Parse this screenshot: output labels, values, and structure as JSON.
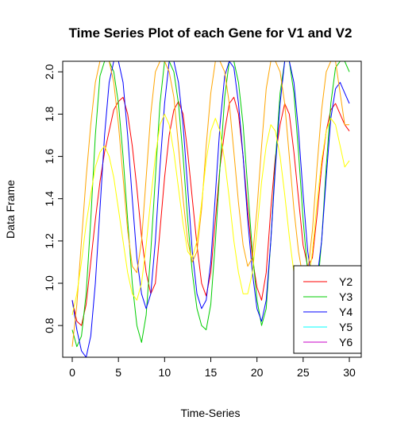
{
  "chart_data": {
    "type": "line",
    "title": "Time Series Plot of each Gene for V1 and V2",
    "xlabel": "Time-Series",
    "ylabel": "Data Frame",
    "xlim": [
      0,
      30
    ],
    "ylim": [
      0.65,
      2.05
    ],
    "x_ticks": [
      0,
      5,
      10,
      15,
      20,
      25,
      30
    ],
    "x_tick_labels": [
      "0",
      "5",
      "10",
      "15",
      "20",
      "25",
      "30"
    ],
    "y_ticks": [
      0.8,
      1.0,
      1.2,
      1.4,
      1.6,
      1.8,
      2.0
    ],
    "y_tick_labels": [
      "0.8",
      "1.0",
      "1.2",
      "1.4",
      "1.6",
      "1.8",
      "2.0"
    ],
    "grid": false,
    "legend_position": "bottom-right",
    "series": [
      {
        "name": "Y2",
        "color": "#FF0000",
        "x": [
          0,
          0.5,
          1,
          1.5,
          2,
          2.5,
          3,
          3.5,
          4,
          4.5,
          5,
          5.5,
          6,
          6.5,
          7,
          7.5,
          8,
          8.5,
          9,
          9.5,
          10,
          10.5,
          11,
          11.5,
          12,
          12.5,
          13,
          13.5,
          14,
          14.5,
          15,
          15.5,
          16,
          16.5,
          17,
          17.5,
          18,
          18.5,
          19,
          19.5,
          20,
          20.5,
          21,
          21.5,
          22,
          22.5,
          23,
          23.5,
          24,
          24.5,
          25,
          25.5,
          26,
          26.5,
          27,
          27.5,
          28,
          28.5,
          29,
          29.5,
          30
        ],
        "values": [
          0.92,
          0.82,
          0.8,
          0.9,
          1.1,
          1.3,
          1.48,
          1.62,
          1.72,
          1.82,
          1.86,
          1.88,
          1.8,
          1.65,
          1.45,
          1.22,
          1.05,
          0.95,
          1.0,
          1.25,
          1.5,
          1.7,
          1.82,
          1.86,
          1.8,
          1.62,
          1.4,
          1.18,
          1.0,
          0.94,
          1.05,
          1.3,
          1.55,
          1.72,
          1.85,
          1.88,
          1.8,
          1.6,
          1.35,
          1.12,
          0.98,
          0.92,
          1.05,
          1.35,
          1.6,
          1.75,
          1.85,
          1.8,
          1.62,
          1.4,
          1.18,
          1.08,
          1.12,
          1.32,
          1.55,
          1.72,
          1.82,
          1.85,
          1.8,
          1.75,
          1.72
        ]
      },
      {
        "name": "Y3",
        "color": "#00CD00",
        "x": [
          0,
          0.5,
          1,
          1.5,
          2,
          2.5,
          3,
          3.5,
          4,
          4.5,
          5,
          5.5,
          6,
          6.5,
          7,
          7.5,
          8,
          8.5,
          9,
          9.5,
          10,
          10.5,
          11,
          11.5,
          12,
          12.5,
          13,
          13.5,
          14,
          14.5,
          15,
          15.5,
          16,
          16.5,
          17,
          17.5,
          18,
          18.5,
          19,
          19.5,
          20,
          20.5,
          21,
          21.5,
          22,
          22.5,
          23,
          23.5,
          24,
          24.5,
          25,
          25.5,
          26,
          26.5,
          27,
          27.5,
          28,
          28.5,
          29,
          29.5,
          30
        ],
        "values": [
          0.78,
          0.7,
          0.75,
          0.95,
          1.3,
          1.7,
          1.98,
          2.05,
          2.05,
          2.0,
          1.85,
          1.6,
          1.3,
          1.0,
          0.8,
          0.72,
          0.85,
          1.15,
          1.5,
          1.85,
          2.05,
          2.05,
          2.0,
          1.85,
          1.6,
          1.3,
          1.05,
          0.88,
          0.8,
          0.78,
          0.9,
          1.2,
          1.55,
          1.88,
          2.05,
          2.05,
          1.95,
          1.75,
          1.45,
          1.15,
          0.92,
          0.8,
          0.88,
          1.2,
          1.58,
          1.9,
          2.05,
          2.05,
          1.9,
          1.62,
          1.3,
          1.05,
          0.92,
          0.95,
          1.2,
          1.55,
          1.85,
          2.02,
          2.05,
          2.05,
          2.0
        ]
      },
      {
        "name": "Y4",
        "color": "#0000FF",
        "x": [
          0,
          0.5,
          1,
          1.5,
          2,
          2.5,
          3,
          3.5,
          4,
          4.5,
          5,
          5.5,
          6,
          6.5,
          7,
          7.5,
          8,
          8.5,
          9,
          9.5,
          10,
          10.5,
          11,
          11.5,
          12,
          12.5,
          13,
          13.5,
          14,
          14.5,
          15,
          15.5,
          16,
          16.5,
          17,
          17.5,
          18,
          18.5,
          19,
          19.5,
          20,
          20.5,
          21,
          21.5,
          22,
          22.5,
          23,
          23.5,
          24,
          24.5,
          25,
          25.5,
          26,
          26.5,
          27,
          27.5,
          28,
          28.5,
          29,
          29.5,
          30
        ],
        "values": [
          0.92,
          0.78,
          0.68,
          0.65,
          0.75,
          1.0,
          1.35,
          1.7,
          1.95,
          2.05,
          2.05,
          1.95,
          1.7,
          1.4,
          1.12,
          0.95,
          0.88,
          0.95,
          1.2,
          1.55,
          1.85,
          2.05,
          2.05,
          1.95,
          1.75,
          1.45,
          1.15,
          0.95,
          0.88,
          0.92,
          1.1,
          1.42,
          1.75,
          1.98,
          2.05,
          2.02,
          1.85,
          1.6,
          1.3,
          1.05,
          0.88,
          0.82,
          0.92,
          1.2,
          1.55,
          1.85,
          2.05,
          2.05,
          1.95,
          1.72,
          1.42,
          1.15,
          1.0,
          1.02,
          1.2,
          1.5,
          1.78,
          1.92,
          1.95,
          1.9,
          1.85
        ]
      },
      {
        "name": "Y5",
        "color": "#00FFFF",
        "x": [],
        "values": []
      },
      {
        "name": "Y6",
        "color": "#C800C8",
        "x": [],
        "values": []
      },
      {
        "name": "",
        "color": "#FFA500",
        "x": [
          0,
          0.5,
          1,
          1.5,
          2,
          2.5,
          3,
          3.5,
          4,
          4.5,
          5,
          5.5,
          6,
          6.5,
          7,
          7.5,
          8,
          8.5,
          9,
          9.5,
          10,
          10.5,
          11,
          11.5,
          12,
          12.5,
          13,
          13.5,
          14,
          14.5,
          15,
          15.5,
          16,
          16.5,
          17,
          17.5,
          18,
          18.5,
          19,
          19.5,
          20,
          20.5,
          21,
          21.5,
          22,
          22.5,
          23,
          23.5,
          24,
          24.5,
          25,
          25.5,
          26,
          26.5,
          27,
          27.5,
          28,
          28.5,
          29,
          29.5,
          30
        ],
        "values": [
          0.7,
          0.9,
          1.2,
          1.5,
          1.75,
          1.95,
          2.05,
          2.05,
          2.05,
          1.95,
          1.75,
          1.5,
          1.25,
          1.08,
          1.05,
          1.2,
          1.5,
          1.8,
          2.0,
          2.05,
          2.05,
          2.0,
          1.88,
          1.65,
          1.4,
          1.2,
          1.1,
          1.15,
          1.35,
          1.65,
          1.9,
          2.05,
          2.05,
          2.0,
          1.85,
          1.62,
          1.38,
          1.18,
          1.08,
          1.12,
          1.35,
          1.65,
          1.92,
          2.05,
          2.05,
          2.0,
          1.85,
          1.6,
          1.35,
          1.15,
          1.02,
          1.05,
          1.25,
          1.55,
          1.82,
          2.0,
          2.05,
          2.05,
          1.9,
          1.75,
          1.75
        ]
      },
      {
        "name": "",
        "color": "#FFFF00",
        "x": [
          0,
          0.5,
          1,
          1.5,
          2,
          2.5,
          3,
          3.5,
          4,
          4.5,
          5,
          5.5,
          6,
          6.5,
          7,
          7.5,
          8,
          8.5,
          9,
          9.5,
          10,
          10.5,
          11,
          11.5,
          12,
          12.5,
          13,
          13.5,
          14,
          14.5,
          15,
          15.5,
          16,
          16.5,
          17,
          17.5,
          18,
          18.5,
          19,
          19.5,
          20,
          20.5,
          21,
          21.5,
          22,
          22.5,
          23,
          23.5,
          24,
          24.5,
          25,
          25.5,
          26,
          26.5,
          27,
          27.5,
          28,
          28.5,
          29,
          29.5,
          30
        ],
        "values": [
          0.85,
          0.95,
          1.1,
          1.28,
          1.42,
          1.55,
          1.62,
          1.65,
          1.6,
          1.5,
          1.35,
          1.2,
          1.05,
          0.95,
          0.92,
          1.0,
          1.18,
          1.4,
          1.6,
          1.75,
          1.8,
          1.75,
          1.62,
          1.45,
          1.28,
          1.15,
          1.12,
          1.2,
          1.38,
          1.58,
          1.72,
          1.78,
          1.72,
          1.58,
          1.4,
          1.2,
          1.05,
          0.95,
          0.95,
          1.05,
          1.25,
          1.48,
          1.65,
          1.75,
          1.72,
          1.6,
          1.42,
          1.22,
          1.05,
          0.95,
          0.9,
          0.98,
          1.15,
          1.38,
          1.58,
          1.72,
          1.78,
          1.75,
          1.65,
          1.55,
          1.58
        ]
      }
    ]
  }
}
